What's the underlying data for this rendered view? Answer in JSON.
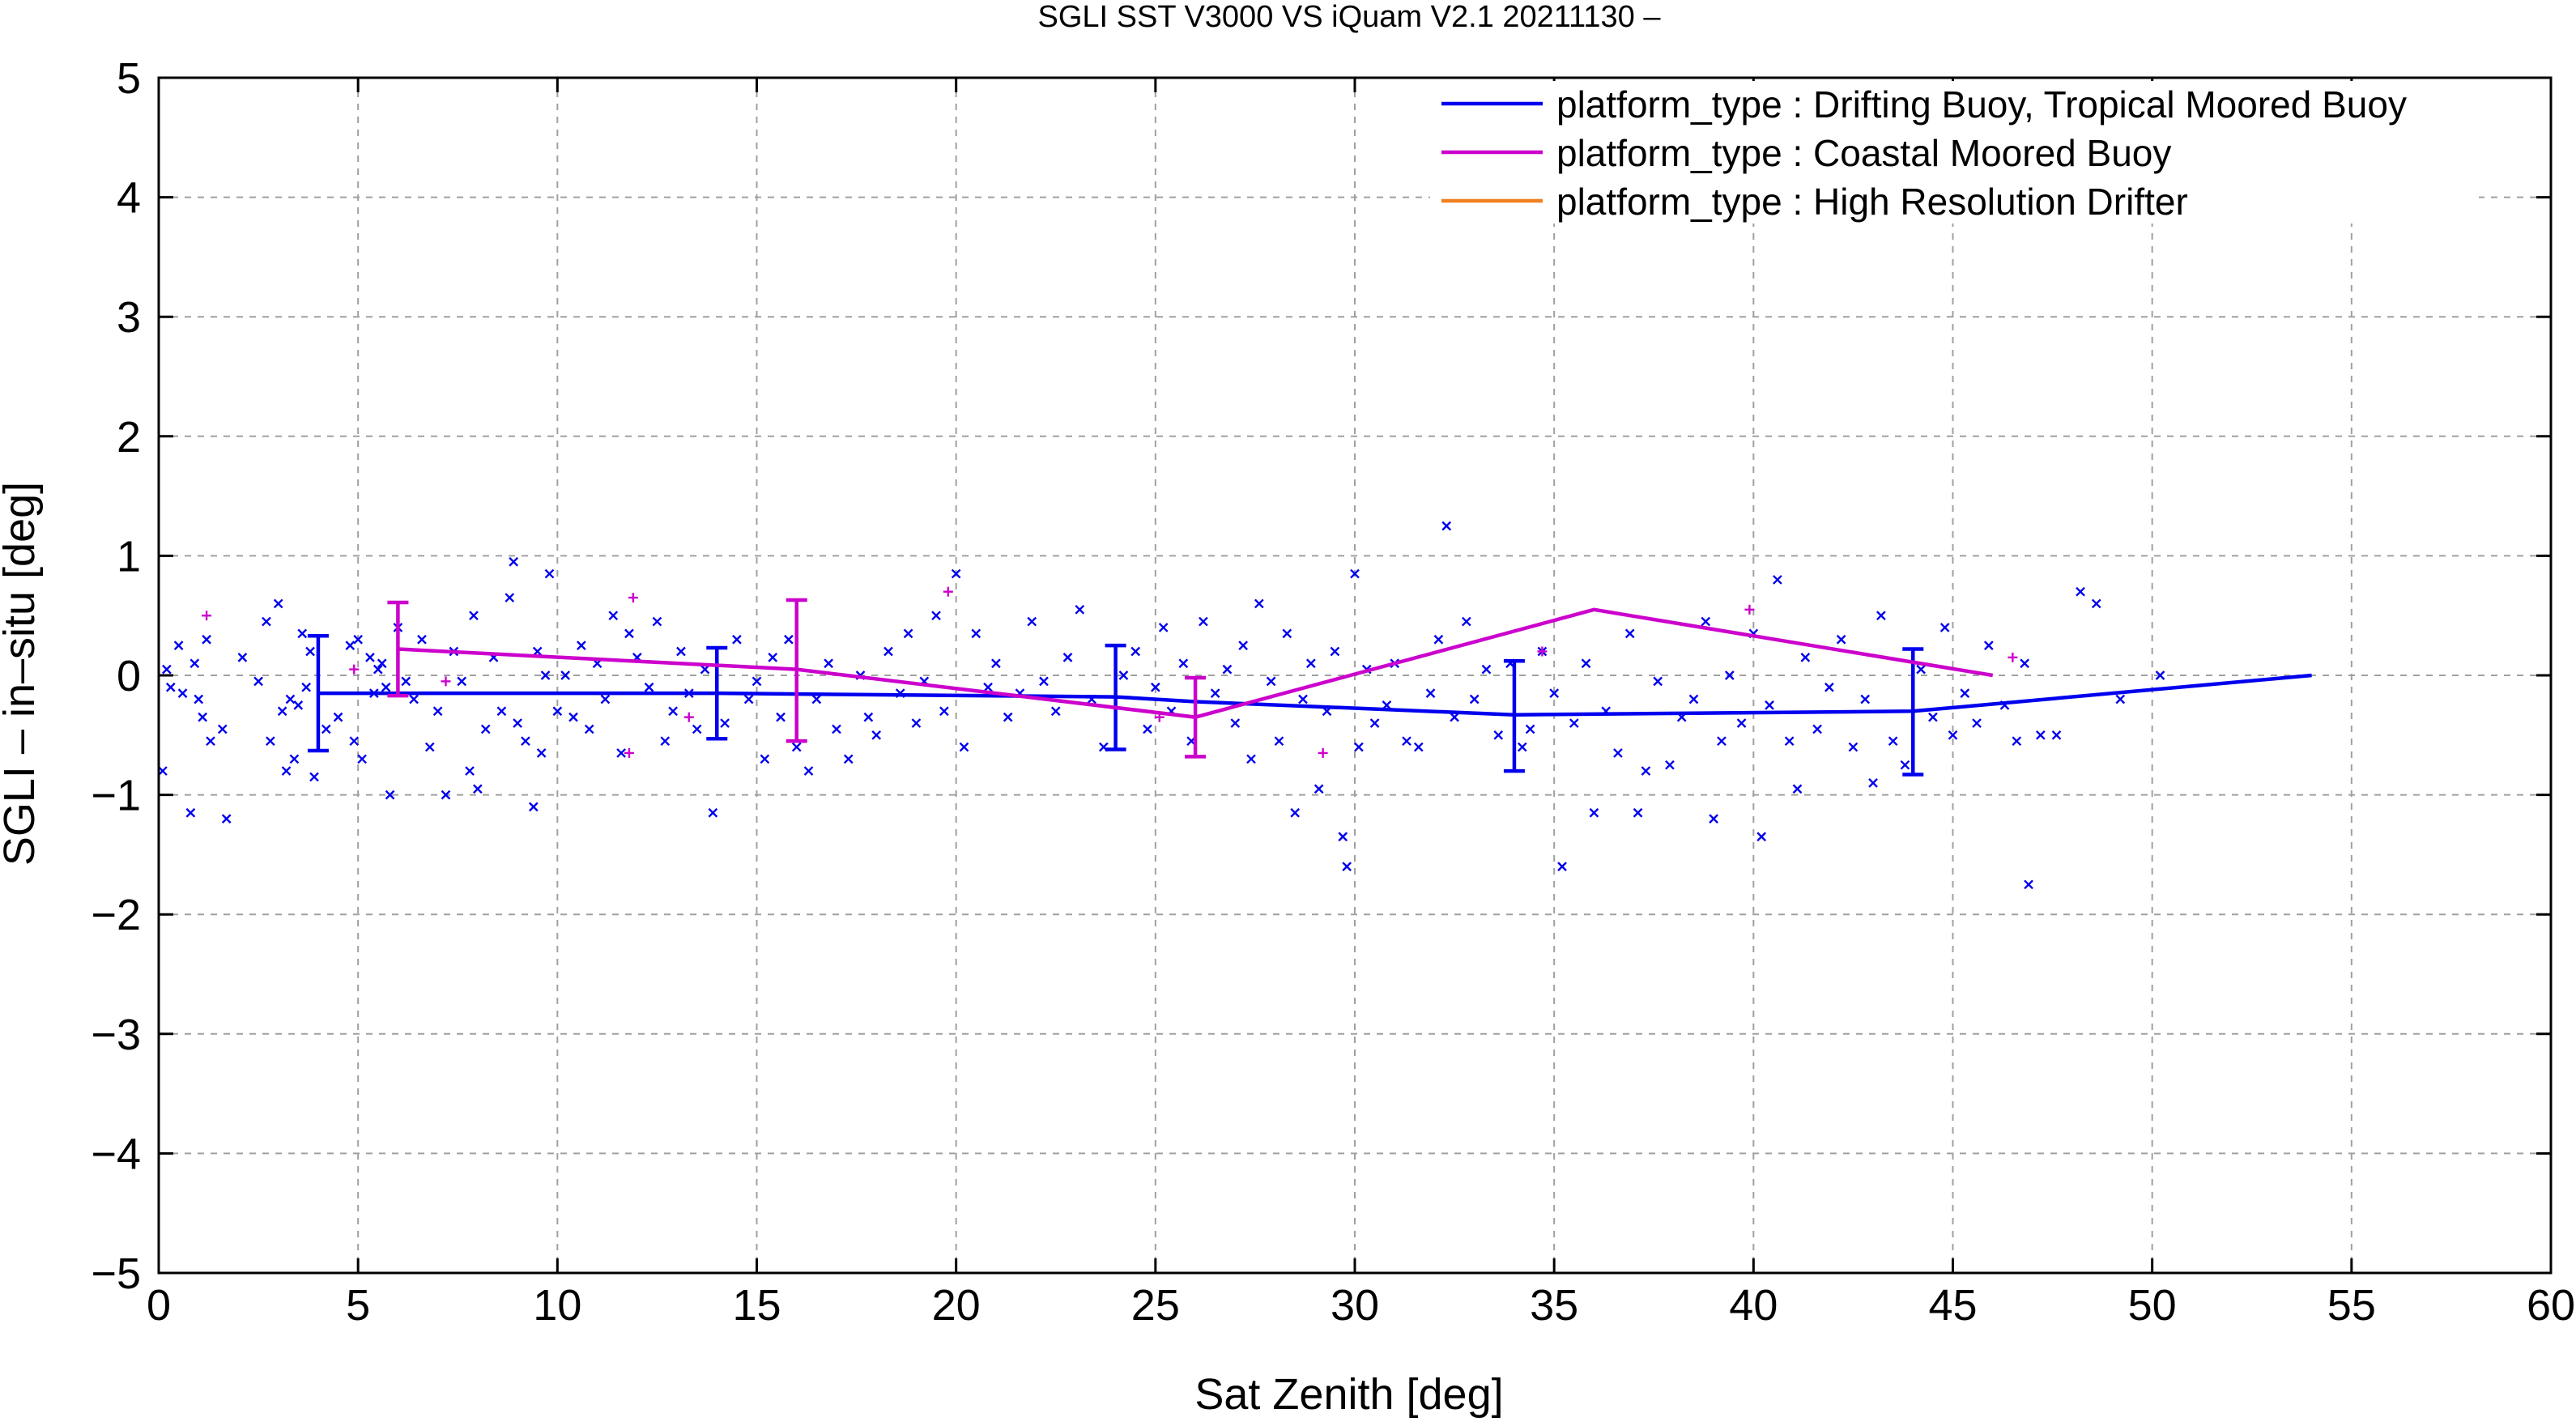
{
  "chart_data": {
    "type": "scatter",
    "title": "SGLI SST V3000 VS iQuam V2.1 20211130 –",
    "xlabel": "Sat Zenith [deg]",
    "ylabel": "SGLI – in–situ [deg]",
    "xlim": [
      0,
      60
    ],
    "ylim": [
      -5,
      5
    ],
    "xticks": [
      0,
      5,
      10,
      15,
      20,
      25,
      30,
      35,
      40,
      45,
      50,
      55,
      60
    ],
    "yticks": [
      -5,
      -4,
      -3,
      -2,
      -1,
      0,
      1,
      2,
      3,
      4,
      5
    ],
    "xtick_labels": [
      "0",
      "5",
      "10",
      "15",
      "20",
      "25",
      "30",
      "35",
      "40",
      "45",
      "50",
      "55",
      "60"
    ],
    "ytick_labels": [
      "−5",
      "−4",
      "−3",
      "−2",
      "−1",
      "0",
      "1",
      "2",
      "3",
      "4",
      "5"
    ],
    "grid": true,
    "legend_position": "top-right",
    "series": [
      {
        "name": "platform_type : Drifting Buoy, Tropical Moored Buoy",
        "color": "#0000ee",
        "marker": "x",
        "mean_line": [
          [
            4,
            -0.15
          ],
          [
            14,
            -0.15
          ],
          [
            24,
            -0.18
          ],
          [
            26,
            -0.22
          ],
          [
            34,
            -0.33
          ],
          [
            44,
            -0.3
          ],
          [
            54,
            0.0
          ]
        ],
        "error_bars": [
          [
            4,
            -0.63,
            0.33
          ],
          [
            14,
            -0.53,
            0.23
          ],
          [
            24,
            -0.62,
            0.25
          ],
          [
            34,
            -0.8,
            0.12
          ],
          [
            44,
            -0.83,
            0.22
          ]
        ],
        "points": [
          [
            0.2,
            0.05
          ],
          [
            0.3,
            -0.1
          ],
          [
            0.1,
            -0.8
          ],
          [
            0.5,
            0.25
          ],
          [
            0.6,
            -0.15
          ],
          [
            0.8,
            -1.15
          ],
          [
            0.9,
            0.1
          ],
          [
            1.0,
            -0.2
          ],
          [
            1.1,
            -0.35
          ],
          [
            1.2,
            0.3
          ],
          [
            1.3,
            -0.55
          ],
          [
            1.6,
            -0.45
          ],
          [
            1.7,
            -1.2
          ],
          [
            2.1,
            0.15
          ],
          [
            2.5,
            -0.05
          ],
          [
            2.7,
            0.45
          ],
          [
            2.8,
            -0.55
          ],
          [
            3.0,
            0.6
          ],
          [
            3.1,
            -0.3
          ],
          [
            3.2,
            -0.8
          ],
          [
            3.3,
            -0.2
          ],
          [
            3.4,
            -0.7
          ],
          [
            3.5,
            -0.25
          ],
          [
            3.6,
            0.35
          ],
          [
            3.7,
            -0.1
          ],
          [
            3.8,
            0.2
          ],
          [
            3.9,
            -0.85
          ],
          [
            4.2,
            -0.45
          ],
          [
            4.5,
            -0.35
          ],
          [
            4.8,
            0.25
          ],
          [
            4.9,
            -0.55
          ],
          [
            5.0,
            0.3
          ],
          [
            5.1,
            -0.7
          ],
          [
            5.3,
            0.15
          ],
          [
            5.4,
            -0.15
          ],
          [
            5.5,
            0.05
          ],
          [
            5.6,
            0.1
          ],
          [
            5.7,
            -0.1
          ],
          [
            5.8,
            -1.0
          ],
          [
            6.0,
            0.4
          ],
          [
            6.2,
            -0.05
          ],
          [
            6.4,
            -0.2
          ],
          [
            6.6,
            0.3
          ],
          [
            6.8,
            -0.6
          ],
          [
            7.0,
            -0.3
          ],
          [
            7.2,
            -1.0
          ],
          [
            7.4,
            0.2
          ],
          [
            7.6,
            -0.05
          ],
          [
            7.8,
            -0.8
          ],
          [
            7.9,
            0.5
          ],
          [
            8.0,
            -0.95
          ],
          [
            8.2,
            -0.45
          ],
          [
            8.4,
            0.15
          ],
          [
            8.6,
            -0.3
          ],
          [
            8.8,
            0.65
          ],
          [
            8.9,
            0.95
          ],
          [
            9.0,
            -0.4
          ],
          [
            9.2,
            -0.55
          ],
          [
            9.4,
            -1.1
          ],
          [
            9.5,
            0.2
          ],
          [
            9.6,
            -0.65
          ],
          [
            9.7,
            0.0
          ],
          [
            9.8,
            0.85
          ],
          [
            10.0,
            -0.3
          ],
          [
            10.2,
            0.0
          ],
          [
            10.4,
            -0.35
          ],
          [
            10.6,
            0.25
          ],
          [
            10.8,
            -0.45
          ],
          [
            11.0,
            0.1
          ],
          [
            11.2,
            -0.2
          ],
          [
            11.4,
            0.5
          ],
          [
            11.6,
            -0.65
          ],
          [
            11.8,
            0.35
          ],
          [
            12.0,
            0.15
          ],
          [
            12.3,
            -0.1
          ],
          [
            12.5,
            0.45
          ],
          [
            12.7,
            -0.55
          ],
          [
            12.9,
            -0.3
          ],
          [
            13.1,
            0.2
          ],
          [
            13.3,
            -0.15
          ],
          [
            13.5,
            -0.45
          ],
          [
            13.7,
            0.05
          ],
          [
            13.9,
            -1.15
          ],
          [
            14.2,
            -0.4
          ],
          [
            14.5,
            0.3
          ],
          [
            14.8,
            -0.2
          ],
          [
            15.0,
            -0.05
          ],
          [
            15.2,
            -0.7
          ],
          [
            15.4,
            0.15
          ],
          [
            15.6,
            -0.35
          ],
          [
            15.8,
            0.3
          ],
          [
            16.0,
            -0.6
          ],
          [
            16.3,
            -0.8
          ],
          [
            16.5,
            -0.2
          ],
          [
            16.8,
            0.1
          ],
          [
            17.0,
            -0.45
          ],
          [
            17.3,
            -0.7
          ],
          [
            17.6,
            0.0
          ],
          [
            17.8,
            -0.35
          ],
          [
            18.0,
            -0.5
          ],
          [
            18.3,
            0.2
          ],
          [
            18.6,
            -0.15
          ],
          [
            18.8,
            0.35
          ],
          [
            19.0,
            -0.4
          ],
          [
            19.2,
            -0.05
          ],
          [
            19.5,
            0.5
          ],
          [
            19.7,
            -0.3
          ],
          [
            20.0,
            0.85
          ],
          [
            20.2,
            -0.6
          ],
          [
            20.5,
            0.35
          ],
          [
            20.8,
            -0.1
          ],
          [
            21.0,
            0.1
          ],
          [
            21.3,
            -0.35
          ],
          [
            21.6,
            -0.15
          ],
          [
            21.9,
            0.45
          ],
          [
            22.2,
            -0.05
          ],
          [
            22.5,
            -0.3
          ],
          [
            22.8,
            0.15
          ],
          [
            23.1,
            0.55
          ],
          [
            23.4,
            -0.2
          ],
          [
            23.7,
            -0.6
          ],
          [
            24.2,
            0.0
          ],
          [
            24.5,
            0.2
          ],
          [
            24.8,
            -0.45
          ],
          [
            25.0,
            -0.1
          ],
          [
            25.2,
            0.4
          ],
          [
            25.4,
            -0.3
          ],
          [
            25.7,
            0.1
          ],
          [
            25.9,
            -0.55
          ],
          [
            26.2,
            0.45
          ],
          [
            26.5,
            -0.15
          ],
          [
            26.8,
            0.05
          ],
          [
            27.0,
            -0.4
          ],
          [
            27.2,
            0.25
          ],
          [
            27.4,
            -0.7
          ],
          [
            27.6,
            0.6
          ],
          [
            27.9,
            -0.05
          ],
          [
            28.1,
            -0.55
          ],
          [
            28.3,
            0.35
          ],
          [
            28.5,
            -1.15
          ],
          [
            28.7,
            -0.2
          ],
          [
            28.9,
            0.1
          ],
          [
            29.1,
            -0.95
          ],
          [
            29.3,
            -0.3
          ],
          [
            29.5,
            0.2
          ],
          [
            29.7,
            -1.35
          ],
          [
            29.8,
            -1.6
          ],
          [
            30.0,
            0.85
          ],
          [
            30.1,
            -0.6
          ],
          [
            30.3,
            0.05
          ],
          [
            30.5,
            -0.4
          ],
          [
            30.8,
            -0.25
          ],
          [
            31.0,
            0.1
          ],
          [
            31.3,
            -0.55
          ],
          [
            31.6,
            -0.6
          ],
          [
            31.9,
            -0.15
          ],
          [
            32.1,
            0.3
          ],
          [
            32.3,
            1.25
          ],
          [
            32.5,
            -0.35
          ],
          [
            32.8,
            0.45
          ],
          [
            33.0,
            -0.2
          ],
          [
            33.3,
            0.05
          ],
          [
            33.6,
            -0.5
          ],
          [
            33.9,
            0.1
          ],
          [
            34.2,
            -0.6
          ],
          [
            34.4,
            -0.45
          ],
          [
            34.7,
            0.2
          ],
          [
            35.0,
            -0.15
          ],
          [
            35.2,
            -1.6
          ],
          [
            35.5,
            -0.4
          ],
          [
            35.8,
            0.1
          ],
          [
            36.0,
            -1.15
          ],
          [
            36.3,
            -0.3
          ],
          [
            36.6,
            -0.65
          ],
          [
            36.9,
            0.35
          ],
          [
            37.1,
            -1.15
          ],
          [
            37.3,
            -0.8
          ],
          [
            37.6,
            -0.05
          ],
          [
            37.9,
            -0.75
          ],
          [
            38.2,
            -0.35
          ],
          [
            38.5,
            -0.2
          ],
          [
            38.8,
            0.45
          ],
          [
            39.0,
            -1.2
          ],
          [
            39.2,
            -0.55
          ],
          [
            39.4,
            0.0
          ],
          [
            39.7,
            -0.4
          ],
          [
            40.0,
            0.35
          ],
          [
            40.2,
            -1.35
          ],
          [
            40.4,
            -0.25
          ],
          [
            40.6,
            0.8
          ],
          [
            40.9,
            -0.55
          ],
          [
            41.1,
            -0.95
          ],
          [
            41.3,
            0.15
          ],
          [
            41.6,
            -0.45
          ],
          [
            41.9,
            -0.1
          ],
          [
            42.2,
            0.3
          ],
          [
            42.5,
            -0.6
          ],
          [
            42.8,
            -0.2
          ],
          [
            43.0,
            -0.9
          ],
          [
            43.2,
            0.5
          ],
          [
            43.5,
            -0.55
          ],
          [
            43.8,
            -0.75
          ],
          [
            44.2,
            0.05
          ],
          [
            44.5,
            -0.35
          ],
          [
            44.8,
            0.4
          ],
          [
            45.0,
            -0.5
          ],
          [
            45.3,
            -0.15
          ],
          [
            45.6,
            -0.4
          ],
          [
            45.9,
            0.25
          ],
          [
            46.3,
            -0.25
          ],
          [
            46.6,
            -0.55
          ],
          [
            46.8,
            0.1
          ],
          [
            46.9,
            -1.75
          ],
          [
            47.2,
            -0.5
          ],
          [
            47.6,
            -0.5
          ],
          [
            48.2,
            0.7
          ],
          [
            48.6,
            0.6
          ],
          [
            49.2,
            -0.2
          ],
          [
            50.2,
            0.0
          ]
        ]
      },
      {
        "name": "platform_type : Coastal Moored Buoy",
        "color": "#cc00cc",
        "marker": "+",
        "mean_line": [
          [
            6,
            0.22
          ],
          [
            16,
            0.05
          ],
          [
            26,
            -0.35
          ],
          [
            36,
            0.55
          ],
          [
            46,
            0.0
          ]
        ],
        "error_bars": [
          [
            6,
            -0.17,
            0.61
          ],
          [
            16,
            -0.55,
            0.63
          ],
          [
            26,
            -0.68,
            -0.02
          ]
        ],
        "points": [
          [
            1.2,
            0.5
          ],
          [
            4.9,
            0.05
          ],
          [
            7.2,
            -0.05
          ],
          [
            11.9,
            0.65
          ],
          [
            11.8,
            -0.65
          ],
          [
            13.3,
            -0.35
          ],
          [
            19.8,
            0.7
          ],
          [
            25.1,
            -0.35
          ],
          [
            29.2,
            -0.65
          ],
          [
            34.7,
            0.2
          ],
          [
            39.9,
            0.55
          ],
          [
            46.5,
            0.15
          ]
        ]
      },
      {
        "name": "platform_type : High Resolution Drifter",
        "color": "#f08020",
        "marker": "x",
        "points": []
      }
    ]
  }
}
